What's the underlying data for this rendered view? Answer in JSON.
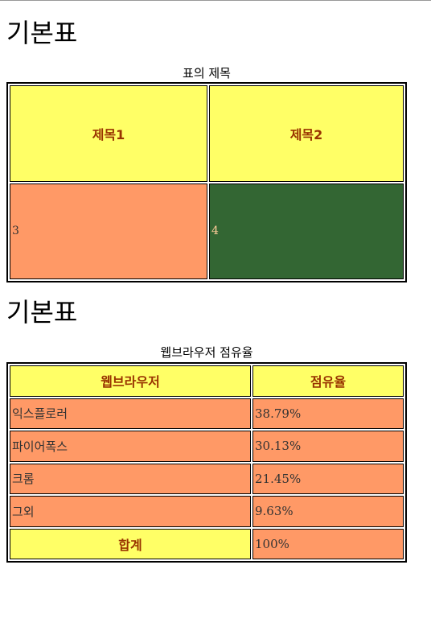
{
  "section1": {
    "heading": "기본표",
    "caption": "표의 제목",
    "header": [
      "제목1",
      "제목2"
    ],
    "cells": [
      "3",
      "4"
    ]
  },
  "section2": {
    "heading": "기본표",
    "caption": "웹브라우저 점유율",
    "header": [
      "웹브라우저",
      "점유율"
    ],
    "rows": [
      {
        "browser": "익스플로러",
        "share": "38.79%"
      },
      {
        "browser": "파이어폭스",
        "share": "30.13%"
      },
      {
        "browser": "크롬",
        "share": "21.45%"
      },
      {
        "browser": "그외",
        "share": "9.63%"
      }
    ],
    "total": {
      "label": "합계",
      "value": "100%"
    }
  },
  "colors": {
    "yellow": "#ffff66",
    "orange": "#ff9966",
    "green": "#336633",
    "header_text": "#993300"
  }
}
